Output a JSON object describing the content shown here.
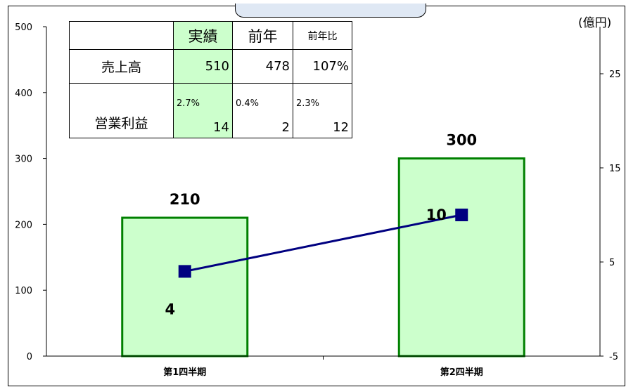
{
  "chart_data": {
    "type": "bar+line",
    "unit_label": "(億円)",
    "categories": [
      "第1四半期",
      "第2四半期"
    ],
    "series": [
      {
        "values": [
          210,
          300
        ],
        "axis": "left",
        "type": "bar",
        "color": "#ccffcc",
        "border": "#008000"
      },
      {
        "values": [
          4,
          10
        ],
        "axis": "right",
        "type": "line",
        "color": "#000080"
      }
    ],
    "bar_labels": [
      "210",
      "300"
    ],
    "line_labels": [
      "4",
      "10"
    ],
    "left_axis": {
      "min": 0,
      "max": 500,
      "ticks": [
        "0",
        "100",
        "200",
        "300",
        "400",
        "500"
      ]
    },
    "right_axis": {
      "min": -5,
      "max": 30,
      "ticks": [
        "-5",
        "5",
        "15",
        "25"
      ]
    }
  },
  "table": {
    "headers": [
      "実績",
      "前年",
      "前年比"
    ],
    "rows": [
      {
        "label": "売上高",
        "values": [
          "510",
          "478",
          "107%"
        ]
      },
      {
        "label": "営業利益",
        "pcts": [
          "2.7%",
          "0.4%",
          "2.3%"
        ],
        "values": [
          "14",
          "2",
          "12"
        ]
      }
    ]
  }
}
